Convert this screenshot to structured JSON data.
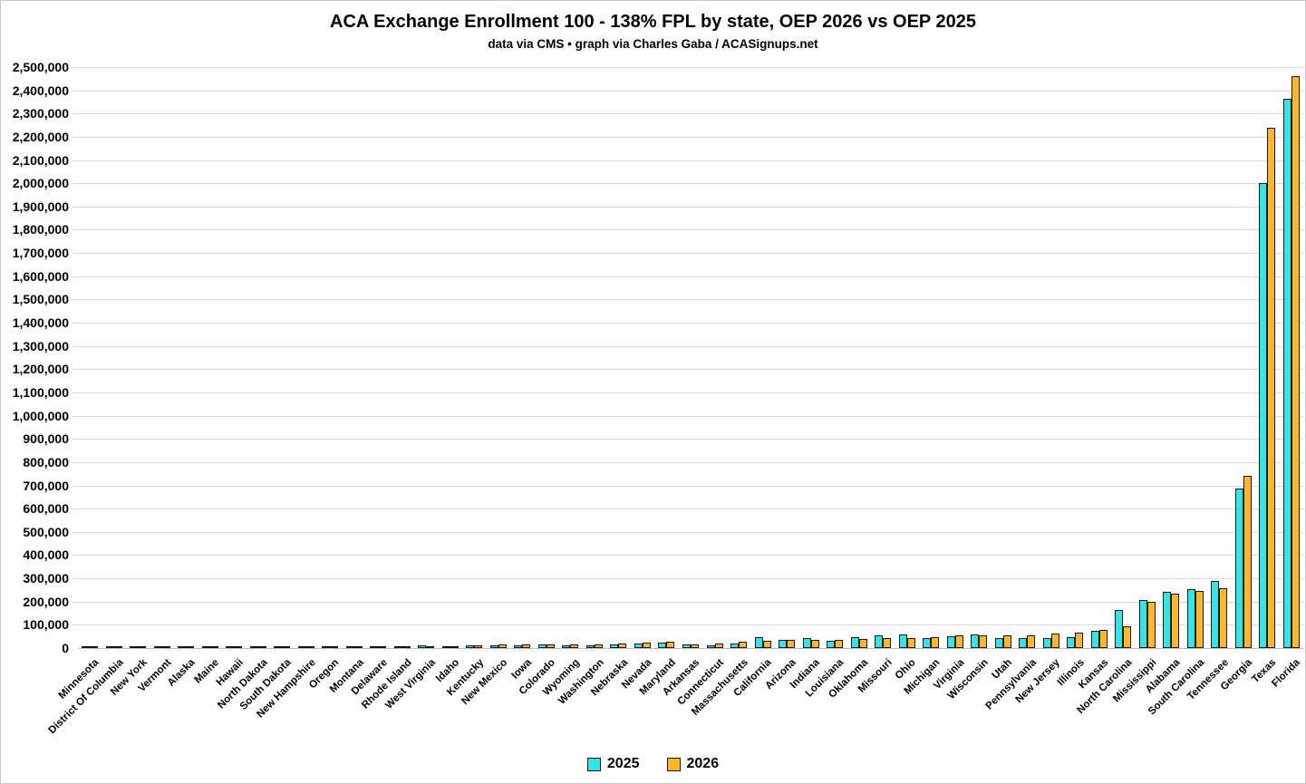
{
  "page": {
    "background": "#ffffff",
    "border_color": "#c9c9c9",
    "text_color": "#000000",
    "gridline_color": "#d9d9d9"
  },
  "chart_data": {
    "type": "bar",
    "title": "ACA Exchange Enrollment 100 - 138% FPL by state, OEP 2026 vs OEP 2025",
    "subtitle": "data via CMS • graph via Charles Gaba / ACASignups.net",
    "grid": true,
    "legend_position": "bottom",
    "xlabel": "",
    "ylabel": "",
    "y_axis": {
      "min": 0,
      "max": 2500000,
      "tick_step": 100000,
      "tick_format": "comma"
    },
    "categories": [
      "Minnesota",
      "District Of Columbia",
      "New York",
      "Vermont",
      "Alaska",
      "Maine",
      "Hawaii",
      "North Dakota",
      "South Dakota",
      "New Hampshire",
      "Oregon",
      "Montana",
      "Delaware",
      "Rhode Island",
      "West Virginia",
      "Idaho",
      "Kentucky",
      "New Mexico",
      "Iowa",
      "Colorado",
      "Wyoming",
      "Washington",
      "Nebraska",
      "Nevada",
      "Maryland",
      "Arkansas",
      "Connecticut",
      "Massachusetts",
      "California",
      "Arizona",
      "Indiana",
      "Louisiana",
      "Oklahoma",
      "Missouri",
      "Ohio",
      "Michigan",
      "Virginia",
      "Wisconsin",
      "Utah",
      "Pennsylvania",
      "New Jersey",
      "Illinois",
      "Kansas",
      "North Carolina",
      "Mississippi",
      "Alabama",
      "South Carolina",
      "Tennessee",
      "Georgia",
      "Texas",
      "Florida"
    ],
    "series": [
      {
        "name": "2025",
        "color": "#2EE8E8",
        "values": [
          400,
          600,
          900,
          1200,
          1600,
          2000,
          2100,
          2300,
          2600,
          2800,
          3000,
          3300,
          7000,
          3500,
          10000,
          4500,
          13000,
          13000,
          13000,
          14000,
          12000,
          13500,
          16000,
          19500,
          22000,
          17000,
          12000,
          21000,
          45000,
          34000,
          42000,
          30000,
          45000,
          53000,
          60000,
          43000,
          52000,
          60000,
          43000,
          43000,
          43000,
          45000,
          74000,
          163000,
          205000,
          240000,
          255000,
          288000,
          685000,
          2000000,
          2365000
        ]
      },
      {
        "name": "2026",
        "color": "#FFB81E",
        "values": [
          500,
          700,
          1100,
          1400,
          1900,
          2300,
          2500,
          2800,
          3100,
          3300,
          3600,
          3900,
          4200,
          4800,
          5500,
          6500,
          13000,
          14000,
          14000,
          14500,
          14500,
          17000,
          21000,
          25000,
          27500,
          17500,
          19000,
          26000,
          33000,
          34000,
          37000,
          37000,
          38000,
          43000,
          44000,
          46000,
          54000,
          55000,
          55000,
          56000,
          62000,
          65000,
          78000,
          95000,
          200000,
          235000,
          247000,
          258000,
          740000,
          2238000,
          2460000
        ]
      }
    ]
  }
}
